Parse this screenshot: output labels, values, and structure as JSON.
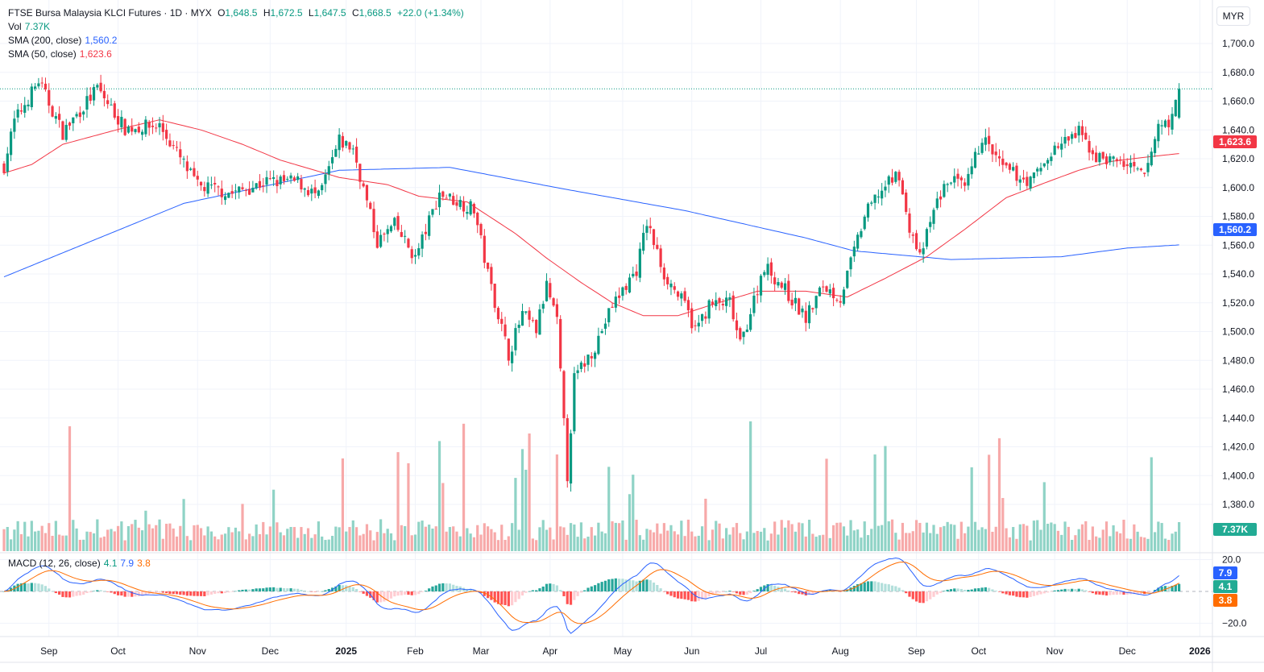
{
  "header": {
    "symbol": "FTSE Bursa Malaysia KLCI Futures · 1D · MYX",
    "o_label": "O",
    "o": "1,648.5",
    "h_label": "H",
    "h": "1,672.5",
    "l_label": "L",
    "l": "1,647.5",
    "c_label": "C",
    "c": "1,668.5",
    "change": "+22.0 (+1.34%)",
    "vol_label": "Vol",
    "vol": "7.37K",
    "sma200_label": "SMA (200, close)",
    "sma200": "1,560.2",
    "sma50_label": "SMA (50, close)",
    "sma50": "1,623.6",
    "macd_label": "MACD (12, 26, close)",
    "macd_hist": "4.1",
    "macd_line": "7.9",
    "macd_signal": "3.8"
  },
  "currency": "MYR",
  "price_axis": [
    "1,700.0",
    "1,680.0",
    "1,660.0",
    "1,640.0",
    "1,620.0",
    "1,600.0",
    "1,580.0",
    "1,560.0",
    "1,540.0",
    "1,520.0",
    "1,500.0",
    "1,480.0",
    "1,460.0",
    "1,440.0",
    "1,420.0",
    "1,400.0",
    "1,380.0"
  ],
  "macd_axis": [
    "20.0",
    "−20.0"
  ],
  "tags": {
    "sma50": "1,623.6",
    "sma200": "1,560.2",
    "vol": "7.37K",
    "macd": "7.9",
    "hist": "4.1",
    "signal": "3.8"
  },
  "colors": {
    "up": "#089981",
    "down": "#f23645",
    "sma200": "#2962ff",
    "sma50": "#f23645",
    "macd": "#2962ff",
    "signal": "#ff6d00"
  },
  "chart_data": {
    "type": "candlestick",
    "bars": 341,
    "close_anchors": [
      [
        0,
        1615
      ],
      [
        3,
        1646
      ],
      [
        10,
        1674
      ],
      [
        17,
        1638
      ],
      [
        27,
        1669
      ],
      [
        35,
        1641
      ],
      [
        45,
        1643
      ],
      [
        56,
        1601
      ],
      [
        66,
        1596
      ],
      [
        76,
        1604
      ],
      [
        85,
        1604
      ],
      [
        91,
        1593
      ],
      [
        97,
        1632
      ],
      [
        101,
        1627
      ],
      [
        108,
        1562
      ],
      [
        113,
        1574
      ],
      [
        119,
        1551
      ],
      [
        126,
        1596
      ],
      [
        136,
        1585
      ],
      [
        140,
        1540
      ],
      [
        146,
        1484
      ],
      [
        150,
        1512
      ],
      [
        154,
        1501
      ],
      [
        157,
        1532
      ],
      [
        160,
        1506
      ],
      [
        163,
        1400
      ],
      [
        165,
        1467
      ],
      [
        171,
        1490
      ],
      [
        176,
        1518
      ],
      [
        183,
        1543
      ],
      [
        186,
        1576
      ],
      [
        191,
        1540
      ],
      [
        197,
        1518
      ],
      [
        200,
        1501
      ],
      [
        204,
        1518
      ],
      [
        210,
        1520
      ],
      [
        213,
        1490
      ],
      [
        220,
        1546
      ],
      [
        225,
        1532
      ],
      [
        232,
        1509
      ],
      [
        237,
        1532
      ],
      [
        242,
        1523
      ],
      [
        249,
        1580
      ],
      [
        253,
        1596
      ],
      [
        259,
        1610
      ],
      [
        261,
        1580
      ],
      [
        265,
        1551
      ],
      [
        270,
        1591
      ],
      [
        274,
        1607
      ],
      [
        278,
        1598
      ],
      [
        283,
        1635
      ],
      [
        289,
        1613
      ],
      [
        297,
        1604
      ],
      [
        304,
        1627
      ],
      [
        311,
        1638
      ],
      [
        316,
        1621
      ],
      [
        323,
        1618
      ],
      [
        330,
        1607
      ],
      [
        334,
        1643
      ],
      [
        338,
        1647
      ],
      [
        340,
        1668.5
      ]
    ],
    "last_bar": {
      "open": 1648.5,
      "high": 1672.5,
      "low": 1647.5,
      "close": 1668.5
    },
    "sma200_anchors": [
      [
        0,
        1538
      ],
      [
        52,
        1589
      ],
      [
        97,
        1612
      ],
      [
        129,
        1614
      ],
      [
        162,
        1599
      ],
      [
        197,
        1584
      ],
      [
        232,
        1565
      ],
      [
        246,
        1556
      ],
      [
        274,
        1550
      ],
      [
        306,
        1552
      ],
      [
        325,
        1558
      ],
      [
        340,
        1560.2
      ]
    ],
    "sma50_anchors": [
      [
        0,
        1610
      ],
      [
        8,
        1616
      ],
      [
        17,
        1630
      ],
      [
        34,
        1641
      ],
      [
        45,
        1647
      ],
      [
        57,
        1640
      ],
      [
        69,
        1630
      ],
      [
        80,
        1619
      ],
      [
        97,
        1607
      ],
      [
        111,
        1602
      ],
      [
        120,
        1594
      ],
      [
        134,
        1590
      ],
      [
        148,
        1568
      ],
      [
        157,
        1551
      ],
      [
        167,
        1534
      ],
      [
        176,
        1520
      ],
      [
        185,
        1511
      ],
      [
        195,
        1511
      ],
      [
        204,
        1518
      ],
      [
        218,
        1528
      ],
      [
        232,
        1528
      ],
      [
        244,
        1524
      ],
      [
        255,
        1537
      ],
      [
        267,
        1552
      ],
      [
        278,
        1571
      ],
      [
        290,
        1593
      ],
      [
        302,
        1604
      ],
      [
        311,
        1612
      ],
      [
        320,
        1618
      ],
      [
        330,
        1621
      ],
      [
        340,
        1623.6
      ]
    ],
    "ylim": [
      1370,
      1710
    ],
    "macd_ylim": [
      -30,
      25
    ],
    "time_labels": [
      [
        "Sep",
        13
      ],
      [
        "Oct",
        33
      ],
      [
        "Nov",
        56
      ],
      [
        "Dec",
        77
      ],
      [
        "2025",
        99
      ],
      [
        "Feb",
        119
      ],
      [
        "Mar",
        138
      ],
      [
        "Apr",
        158
      ],
      [
        "May",
        179
      ],
      [
        "Jun",
        199
      ],
      [
        "Jul",
        219
      ],
      [
        "Aug",
        242
      ],
      [
        "Sep",
        264
      ],
      [
        "Oct",
        282
      ],
      [
        "Nov",
        304
      ],
      [
        "Dec",
        325
      ],
      [
        "2026",
        346
      ]
    ]
  }
}
